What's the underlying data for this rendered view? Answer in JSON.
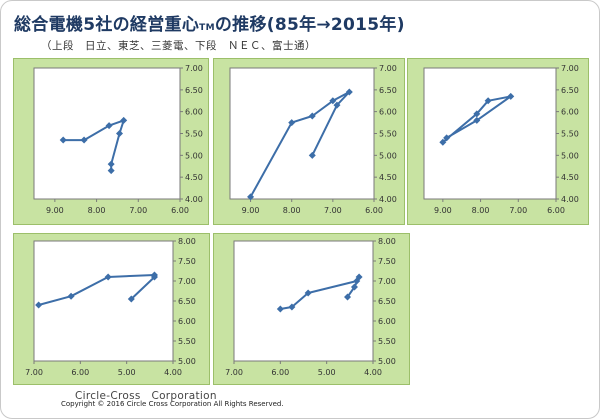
{
  "title_main": "総合電機5社の経営重心",
  "title_tm": "TM",
  "title_tail": "の推移(85年→2015年)",
  "subtitle": "（上段　日立、東芝、三菱電、下段　ＮＥＣ、富士通）",
  "footer": {
    "company": "Circle-Cross　Corporation",
    "copyright": "Copyright © 2016 Circle Cross Corporation All Rights Reserved."
  },
  "colors": {
    "line": "#3d6ea8",
    "panel_bg": "#c8e3a2",
    "plot_bg": "#ffffff",
    "title": "#1f3a63"
  },
  "chart_data": [
    {
      "type": "line",
      "x_reversed": true,
      "xlim": [
        6.0,
        9.5
      ],
      "ylim": [
        4.0,
        7.0
      ],
      "xticks": [
        "9.00",
        "8.00",
        "7.00",
        "6.00"
      ],
      "yticks": [
        "7.00",
        "6.50",
        "6.00",
        "5.50",
        "5.00",
        "4.50",
        "4.00"
      ],
      "points": [
        [
          8.8,
          5.35
        ],
        [
          8.3,
          5.35
        ],
        [
          7.7,
          5.68
        ],
        [
          7.35,
          5.8
        ],
        [
          7.45,
          5.5
        ],
        [
          7.65,
          4.8
        ],
        [
          7.65,
          4.65
        ]
      ]
    },
    {
      "type": "line",
      "x_reversed": true,
      "xlim": [
        6.0,
        9.5
      ],
      "ylim": [
        4.0,
        7.0
      ],
      "xticks": [
        "9.00",
        "8.00",
        "7.00",
        "6.00"
      ],
      "yticks": [
        "7.00",
        "6.50",
        "6.00",
        "5.50",
        "5.00",
        "4.50",
        "4.00"
      ],
      "points": [
        [
          9.0,
          4.05
        ],
        [
          8.0,
          5.75
        ],
        [
          7.5,
          5.9
        ],
        [
          7.0,
          6.25
        ],
        [
          6.6,
          6.45
        ],
        [
          6.9,
          6.15
        ],
        [
          7.5,
          5.0
        ]
      ]
    },
    {
      "type": "line",
      "x_reversed": true,
      "xlim": [
        6.0,
        9.5
      ],
      "ylim": [
        4.0,
        7.0
      ],
      "xticks": [
        "9.00",
        "8.00",
        "7.00",
        "6.00"
      ],
      "yticks": [
        "7.00",
        "6.50",
        "6.00",
        "5.50",
        "5.00",
        "4.50",
        "4.00"
      ],
      "points": [
        [
          9.0,
          5.3
        ],
        [
          8.1,
          5.95
        ],
        [
          7.8,
          6.25
        ],
        [
          7.2,
          6.35
        ],
        [
          8.1,
          5.8
        ],
        [
          8.9,
          5.4
        ]
      ]
    },
    {
      "type": "line",
      "x_reversed": true,
      "xlim": [
        4.0,
        7.0
      ],
      "ylim": [
        5.0,
        8.0
      ],
      "xticks": [
        "7.00",
        "6.00",
        "5.00",
        "4.00"
      ],
      "yticks": [
        "8.00",
        "7.50",
        "7.00",
        "6.50",
        "6.00",
        "5.50",
        "5.00"
      ],
      "points": [
        [
          6.9,
          6.4
        ],
        [
          6.2,
          6.62
        ],
        [
          5.4,
          7.1
        ],
        [
          4.4,
          7.15
        ],
        [
          4.4,
          7.1
        ],
        [
          4.9,
          6.55
        ]
      ]
    },
    {
      "type": "line",
      "x_reversed": true,
      "xlim": [
        4.0,
        7.0
      ],
      "ylim": [
        5.0,
        8.0
      ],
      "xticks": [
        "7.00",
        "6.00",
        "5.00",
        "4.00"
      ],
      "yticks": [
        "8.00",
        "7.50",
        "7.00",
        "6.50",
        "6.00",
        "5.50",
        "5.00"
      ],
      "points": [
        [
          6.0,
          6.3
        ],
        [
          5.75,
          6.35
        ],
        [
          5.4,
          6.7
        ],
        [
          4.35,
          7.0
        ],
        [
          4.3,
          7.1
        ],
        [
          4.4,
          6.85
        ],
        [
          4.55,
          6.6
        ]
      ]
    }
  ]
}
